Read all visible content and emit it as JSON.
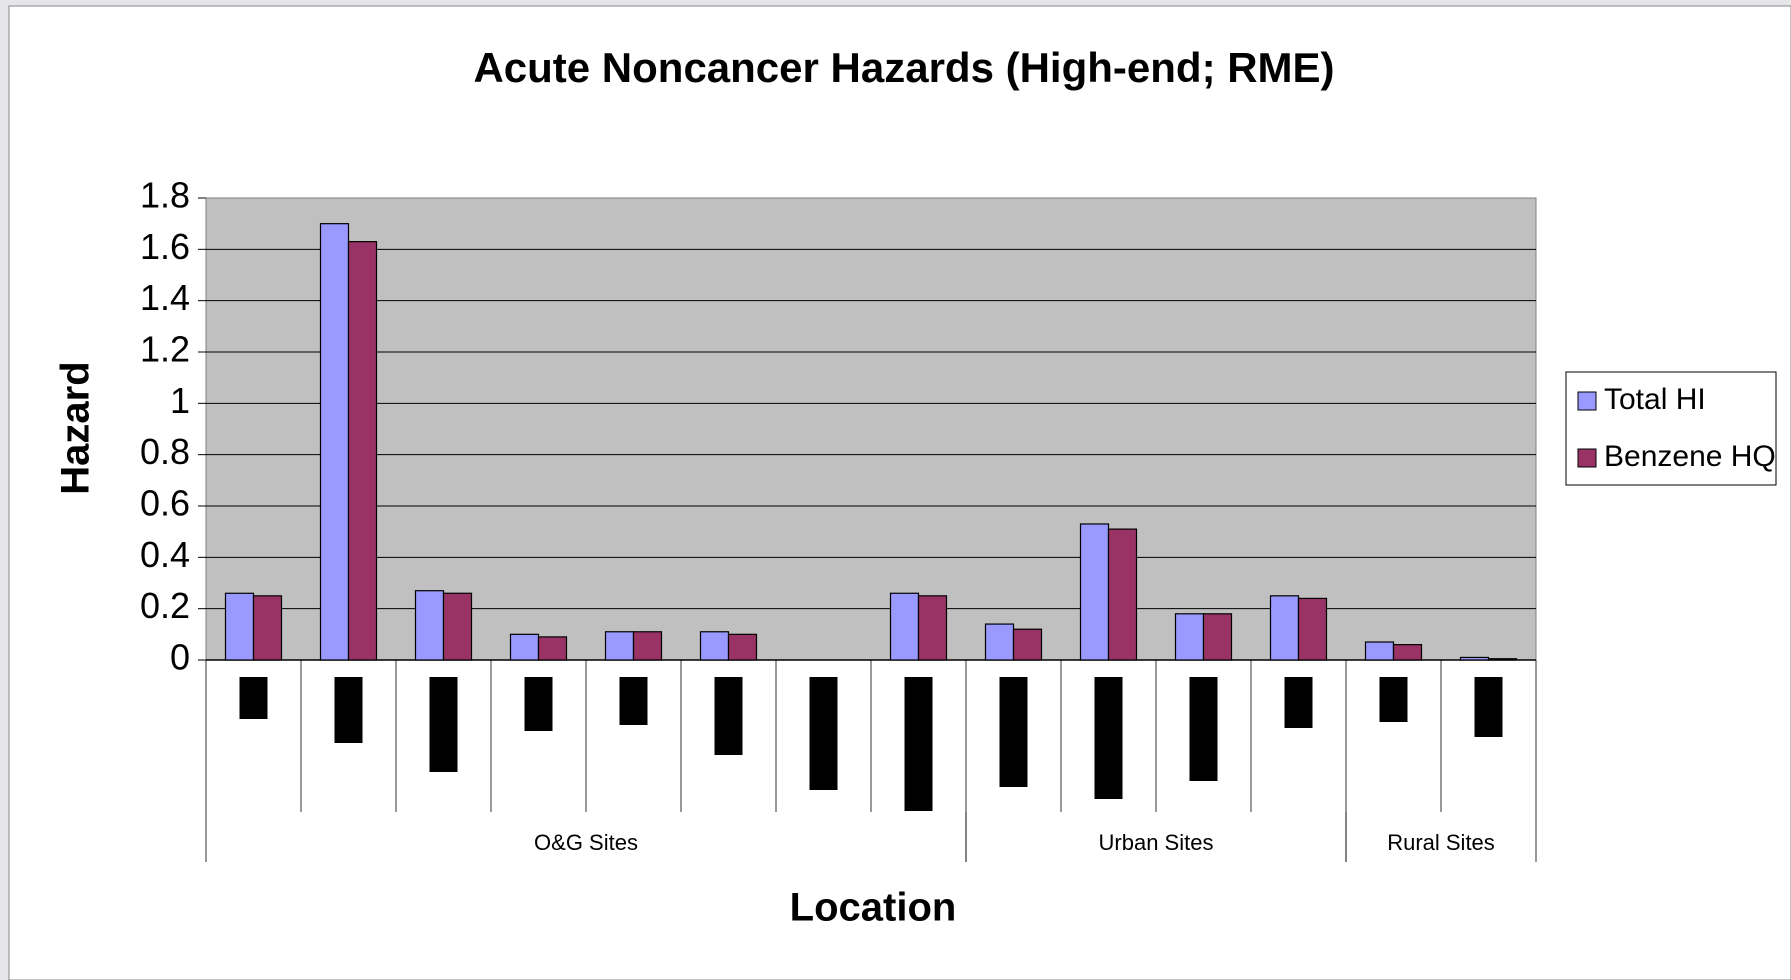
{
  "chart_data": {
    "type": "bar",
    "title": "Acute Noncancer Hazards (High-end; RME)",
    "y_label": "Hazard",
    "x_label": "Location",
    "categories": [
      null,
      null,
      null,
      null,
      null,
      null,
      null,
      null,
      null,
      null,
      null,
      null,
      null,
      null
    ],
    "groups": [
      {
        "label": "O&G Sites",
        "count": 8
      },
      {
        "label": "Urban Sites",
        "count": 4
      },
      {
        "label": "Rural Sites",
        "count": 2
      }
    ],
    "series": [
      {
        "name": "Total HI",
        "color": "#9999ff",
        "values": [
          0.26,
          1.7,
          0.27,
          0.1,
          0.11,
          0.11,
          null,
          0.26,
          0.14,
          0.53,
          0.18,
          0.25,
          0.07,
          0.01
        ]
      },
      {
        "name": "Benzene HQ",
        "color": "#993366",
        "values": [
          0.25,
          1.63,
          0.26,
          0.09,
          0.11,
          0.1,
          null,
          0.25,
          0.12,
          0.51,
          0.18,
          0.24,
          0.06,
          0.005
        ]
      }
    ],
    "ylim": [
      0,
      1.8
    ],
    "yticks": [
      0,
      0.2,
      0.4,
      0.6,
      0.8,
      1,
      1.2,
      1.4,
      1.6,
      1.8
    ],
    "grid": true,
    "legend": "right"
  }
}
